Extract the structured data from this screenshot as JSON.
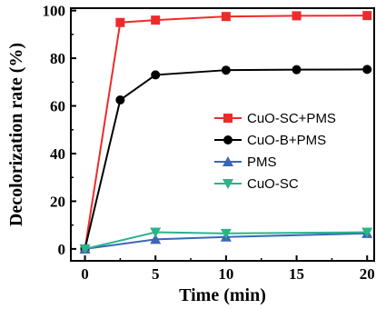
{
  "chart_data": {
    "type": "line",
    "xlabel": "Time (min)",
    "ylabel": "Decolorization rate (%)",
    "xlim": [
      -1,
      20.5
    ],
    "ylim": [
      -5,
      101
    ],
    "xticks": [
      0,
      5,
      10,
      15,
      20
    ],
    "yticks": [
      0,
      20,
      40,
      60,
      80,
      100
    ],
    "grid": false,
    "legend_position": "center-right",
    "series": [
      {
        "name": "CuO-SC+PMS",
        "color": "#ee2b2b",
        "marker": "square",
        "x": [
          0,
          2.5,
          5,
          10,
          15,
          20
        ],
        "y": [
          0,
          95,
          96,
          97.5,
          97.8,
          97.9
        ]
      },
      {
        "name": "CuO-B+PMS",
        "color": "#000000",
        "marker": "circle",
        "x": [
          0,
          2.5,
          5,
          10,
          15,
          20
        ],
        "y": [
          0,
          62.5,
          73,
          75,
          75.2,
          75.3
        ]
      },
      {
        "name": "PMS",
        "color": "#3b66b8",
        "marker": "triangle-up",
        "x": [
          0,
          5,
          10,
          20
        ],
        "y": [
          0,
          4,
          5,
          6.5
        ]
      },
      {
        "name": "CuO-SC",
        "color": "#2bb38a",
        "marker": "triangle-down",
        "x": [
          0,
          5,
          10,
          20
        ],
        "y": [
          0,
          7,
          6.5,
          7
        ]
      }
    ]
  }
}
